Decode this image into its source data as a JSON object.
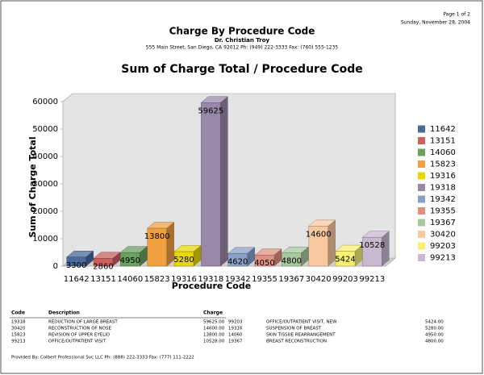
{
  "header": {
    "page": "Page 1 of 2",
    "date": "Sunday, November 28, 2004",
    "title": "Charge By Procedure Code",
    "doctor": "Dr. Christian Troy",
    "address": "555 Main Street, San Diego, CA 92012 Ph: (949) 222-3333 Fax: (760) 555-1235"
  },
  "chart_data": {
    "type": "bar",
    "title": "Sum of Charge Total / Procedure Code",
    "y_label": "Sum of Charge Total",
    "x_label": "Procedure Code",
    "categories": [
      "11642",
      "13151",
      "14060",
      "15823",
      "19316",
      "19318",
      "19342",
      "19355",
      "19367",
      "30420",
      "99203",
      "99213"
    ],
    "values": [
      3300,
      2860,
      4950,
      13800,
      5280,
      59625,
      4620,
      4050,
      4800,
      14600,
      5424,
      10528
    ],
    "colors": [
      "#4a6a9a",
      "#c86060",
      "#6aa060",
      "#f0a040",
      "#e8d800",
      "#9a88a8",
      "#8aa0c8",
      "#e09080",
      "#a8c8a0",
      "#f8c8a0",
      "#f8f070",
      "#c8b8d0"
    ],
    "ylim": [
      0,
      60000
    ],
    "yticks": [
      0,
      10000,
      20000,
      30000,
      40000,
      50000,
      60000
    ],
    "grid": false,
    "legend": "right"
  },
  "table": {
    "header": [
      "Code",
      "Description",
      "Charge"
    ],
    "rows": [
      [
        "19318",
        "REDUCTION OF LARGE BREAST",
        "59625.00",
        "99203",
        "OFFICE/OUTPATIENT VISIT, NEW",
        "5424.00"
      ],
      [
        "30420",
        "RECONSTRUCTION OF NOSE",
        "14600.00",
        "19316",
        "SUSPENSION OF BREAST",
        "5280.00"
      ],
      [
        "15823",
        "REVISION OF UPPER EYELID",
        "13800.00",
        "14060",
        "SKIN TISSUE REARRANGEMENT",
        "4950.00"
      ],
      [
        "99213",
        "OFFICE/OUTPATIENT VISIT",
        "10528.00",
        "19367",
        "BREAST RECONSTRUCTION",
        "4800.00"
      ]
    ]
  },
  "footer": "Provided By: Colbert Professional Svc LLC Ph: (888) 222-3333 Fax: (777) 111-2222"
}
